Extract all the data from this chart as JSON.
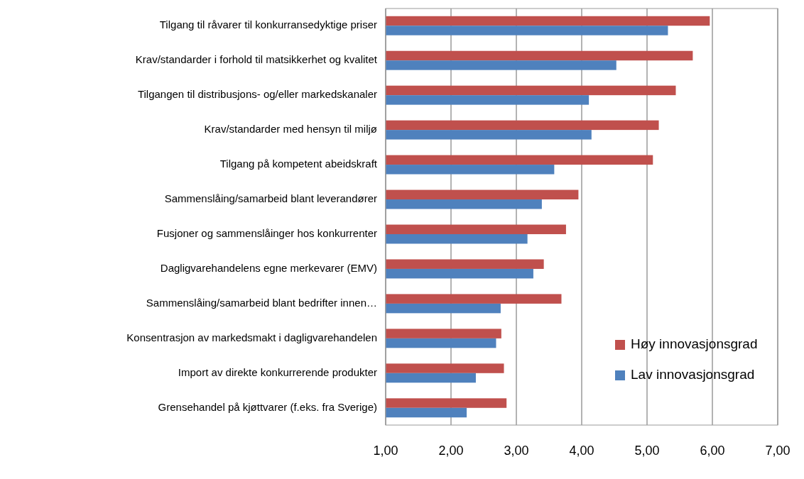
{
  "chart_data": {
    "type": "bar",
    "orientation": "horizontal",
    "categories": [
      "Tilgang til råvarer til konkurransedyktige priser",
      "Krav/standarder i forhold til matsikkerhet og kvalitet",
      "Tilgangen til distribusjons- og/eller markedskanaler",
      "Krav/standarder med hensyn til miljø",
      "Tilgang på kompetent abeidskraft",
      "Sammenslåing/samarbeid blant leverandører",
      "Fusjoner og sammenslåinger hos konkurrenter",
      "Dagligvarehandelens egne merkevarer (EMV)",
      "Sammenslåing/samarbeid blant bedrifter innen…",
      "Konsentrasjon av markedsmakt i dagligvarehandelen",
      "Import av direkte konkurrerende produkter",
      "Grensehandel på kjøttvarer (f.eks. fra Sverige)"
    ],
    "series": [
      {
        "name": "Høy innovasjonsgrad",
        "color": "#c0504d",
        "values": [
          5.96,
          5.7,
          5.44,
          5.18,
          5.09,
          3.95,
          3.76,
          3.42,
          3.69,
          2.77,
          2.81,
          2.85
        ]
      },
      {
        "name": "Lav innovasjonsgrad",
        "color": "#4f81bd",
        "values": [
          5.32,
          4.53,
          4.11,
          4.15,
          3.58,
          3.39,
          3.17,
          3.26,
          2.76,
          2.69,
          2.38,
          2.24
        ]
      }
    ],
    "xlim": [
      1,
      7
    ],
    "xticks": [
      {
        "value": 1,
        "label": "1,00"
      },
      {
        "value": 2,
        "label": "2,00"
      },
      {
        "value": 3,
        "label": "3,00"
      },
      {
        "value": 4,
        "label": "4,00"
      },
      {
        "value": 5,
        "label": "5,00"
      },
      {
        "value": 6,
        "label": "6,00"
      },
      {
        "value": 7,
        "label": "7,00"
      }
    ],
    "grid": "x",
    "legend": "bottom right"
  }
}
